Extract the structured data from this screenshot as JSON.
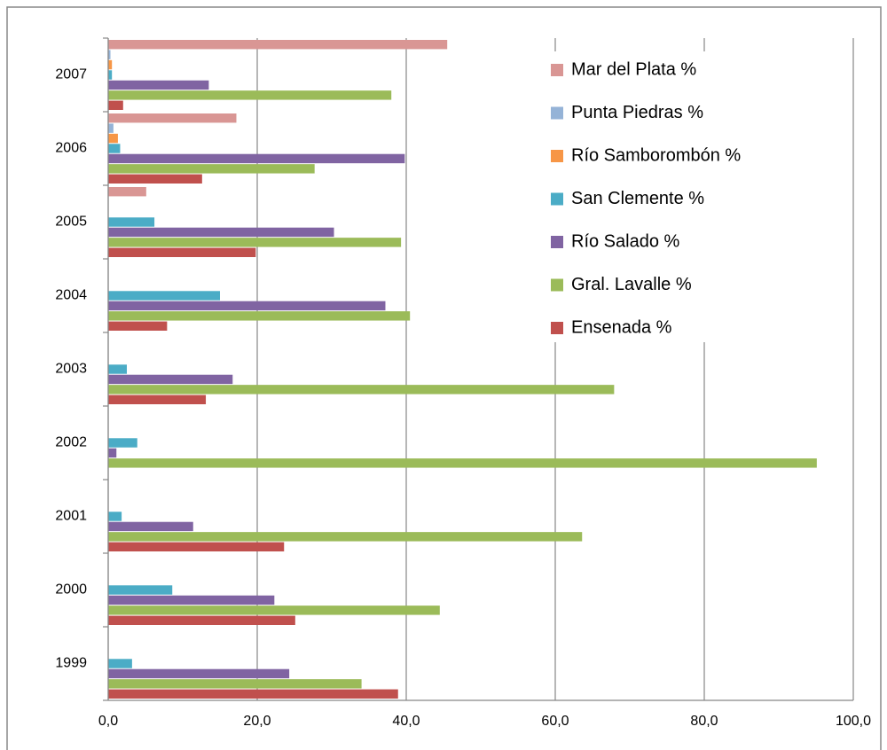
{
  "chart_data": {
    "type": "bar",
    "orientation": "horizontal",
    "categories": [
      "1999",
      "2000",
      "2001",
      "2002",
      "2003",
      "2004",
      "2005",
      "2006",
      "2007"
    ],
    "series": [
      {
        "name": "Ensenada %",
        "color": "#c0504d",
        "values": [
          38.9,
          25.1,
          23.6,
          0,
          13.1,
          7.9,
          19.8,
          12.6,
          2.0
        ]
      },
      {
        "name": "Gral. Lavalle %",
        "color": "#9bbb59",
        "values": [
          34.0,
          44.5,
          63.6,
          95.1,
          67.9,
          40.5,
          39.3,
          27.7,
          38.0
        ]
      },
      {
        "name": "Río Salado %",
        "color": "#8064a2",
        "values": [
          24.3,
          22.3,
          11.4,
          1.1,
          16.7,
          37.2,
          30.3,
          39.8,
          13.5
        ]
      },
      {
        "name": "San Clemente %",
        "color": "#4bacc6",
        "values": [
          3.2,
          8.6,
          1.8,
          3.9,
          2.5,
          15.0,
          6.2,
          1.6,
          0.5
        ]
      },
      {
        "name": "Río Samborombón %",
        "color": "#f79646",
        "values": [
          0,
          0,
          0,
          0,
          0,
          0,
          0,
          1.3,
          0.5
        ]
      },
      {
        "name": "Punta Piedras %",
        "color": "#95b3d7",
        "values": [
          0,
          0,
          0,
          0,
          0,
          0,
          0,
          0.7,
          0.3
        ]
      },
      {
        "name": "Mar del Plata %",
        "color": "#d99694",
        "values": [
          0,
          0,
          0,
          0,
          0,
          0,
          5.1,
          17.2,
          45.5
        ]
      }
    ],
    "xlim": [
      0,
      100
    ],
    "xticks": [
      {
        "value": 0,
        "label": "0,0"
      },
      {
        "value": 20,
        "label": "20,0"
      },
      {
        "value": 40,
        "label": "40,0"
      },
      {
        "value": 60,
        "label": "60,0"
      },
      {
        "value": 80,
        "label": "80,0"
      },
      {
        "value": 100,
        "label": "100,0"
      }
    ],
    "grid": true,
    "legend": "upper right"
  }
}
